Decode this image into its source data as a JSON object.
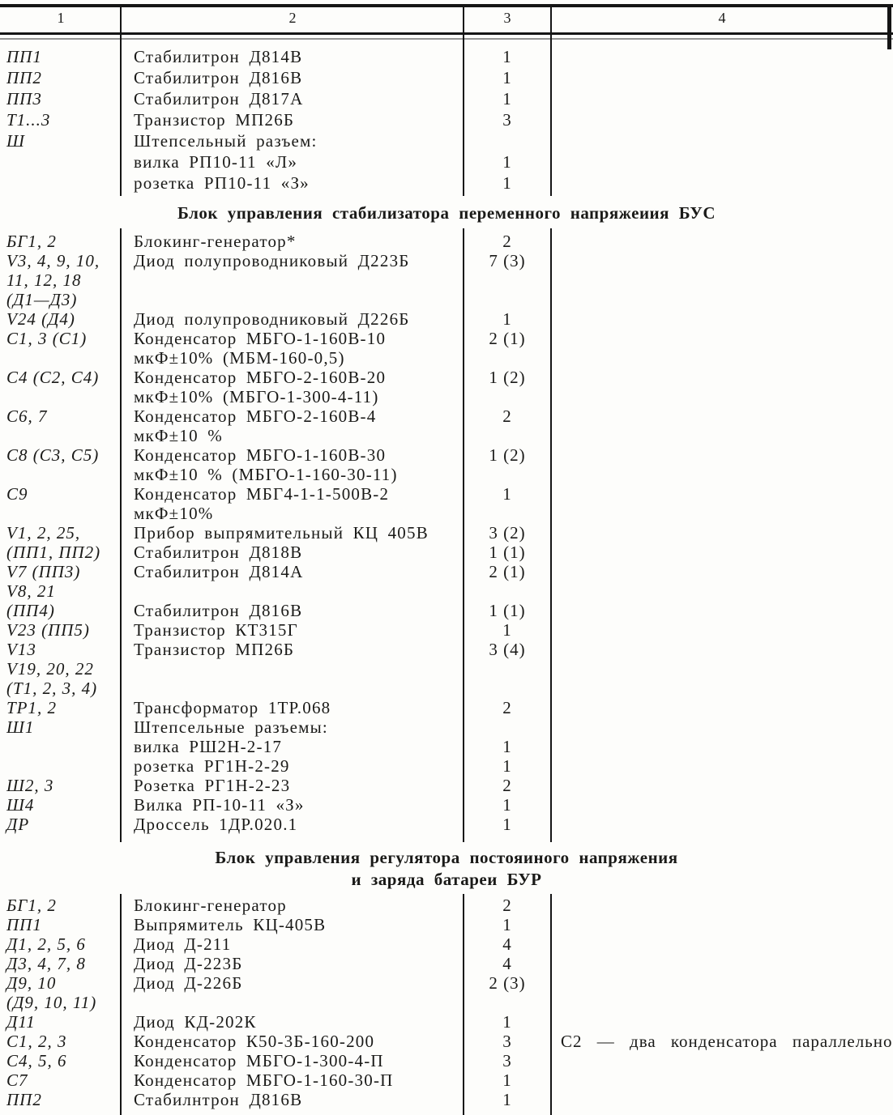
{
  "header": {
    "col1": "1",
    "col2": "2",
    "col3": "3",
    "col4": "4"
  },
  "section_top": {
    "rows": [
      {
        "c1": "ПП1",
        "c2": "Стабилитрон Д814В",
        "c3": "1",
        "c4": ""
      },
      {
        "c1": "ПП2",
        "c2": "Стабилитрон Д816В",
        "c3": "1",
        "c4": ""
      },
      {
        "c1": "ПП3",
        "c2": "Стабилитрон Д817А",
        "c3": "1",
        "c4": ""
      },
      {
        "c1": "Т1...3",
        "c2": "Транзистор МП26Б",
        "c3": "3",
        "c4": ""
      },
      {
        "c1": "Ш",
        "c2": "Штепсельный разъем:",
        "c3": "",
        "c4": ""
      },
      {
        "c1": "",
        "c2": "вилка РП10-11 «Л»",
        "c3": "1",
        "c4": ""
      },
      {
        "c1": "",
        "c2": "розетка РП10-11 «З»",
        "c3": "1",
        "c4": ""
      }
    ]
  },
  "section_bus": {
    "heading": "Блок управления стабилизатора переменного напряжеиия БУС",
    "rows": [
      {
        "c1": "БГ1, 2",
        "c2": "Блокинг-генератор*",
        "c3": "2",
        "c4": ""
      },
      {
        "c1": "V3, 4, 9, 10,",
        "c2": "Диод полупроводниковый Д223Б",
        "c3": "7 (3)",
        "c4": ""
      },
      {
        "c1": "11, 12, 18",
        "c2": "",
        "c3": "",
        "c4": ""
      },
      {
        "c1": "(Д1—Д3)",
        "c2": "",
        "c3": "",
        "c4": ""
      },
      {
        "c1": "V24 (Д4)",
        "c2": "Диод полупроводниковый Д226Б",
        "c3": "1",
        "c4": ""
      },
      {
        "c1": "С1, 3 (С1)",
        "c2": "Конденсатор МБГО-1-160В-10",
        "c3": "2 (1)",
        "c4": ""
      },
      {
        "c1": "",
        "c2": "мкФ±10% (МБМ-160-0,5)",
        "c3": "",
        "c4": ""
      },
      {
        "c1": "С4 (С2, С4)",
        "c2": "Конденсатор МБГО-2-160В-20",
        "c3": "1 (2)",
        "c4": ""
      },
      {
        "c1": "",
        "c2": "мкФ±10% (МБГО-1-300-4-11)",
        "c3": "",
        "c4": ""
      },
      {
        "c1": "С6, 7",
        "c2": "Конденсатор МБГО-2-160В-4",
        "c3": "2",
        "c4": ""
      },
      {
        "c1": "",
        "c2": "мкФ±10 %",
        "c3": "",
        "c4": ""
      },
      {
        "c1": "С8 (С3, С5)",
        "c2": "Конденсатор МБГО-1-160В-30",
        "c3": "1 (2)",
        "c4": ""
      },
      {
        "c1": "",
        "c2": "мкФ±10 % (МБГО-1-160-30-11)",
        "c3": "",
        "c4": ""
      },
      {
        "c1": "С9",
        "c2": "Конденсатор МБГ4-1-1-500В-2",
        "c3": "1",
        "c4": ""
      },
      {
        "c1": "",
        "c2": "мкФ±10%",
        "c3": "",
        "c4": ""
      },
      {
        "c1": "V1, 2, 25,",
        "c2": "Прибор выпрямительный КЦ 405В",
        "c3": "3 (2)",
        "c4": ""
      },
      {
        "c1": "(ПП1, ПП2)",
        "c2": "Стабилитрон Д818В",
        "c3": "1 (1)",
        "c4": ""
      },
      {
        "c1": "V7 (ПП3)",
        "c2": "Стабилитрон Д814А",
        "c3": "2 (1)",
        "c4": ""
      },
      {
        "c1": "V8, 21",
        "c2": "",
        "c3": "",
        "c4": ""
      },
      {
        "c1": "(ПП4)",
        "c2": "Стабилитрон Д816В",
        "c3": "1 (1)",
        "c4": ""
      },
      {
        "c1": "V23 (ПП5)",
        "c2": "Транзистор КТ315Г",
        "c3": "1",
        "c4": ""
      },
      {
        "c1": "V13",
        "c2": "Транзистор МП26Б",
        "c3": "3 (4)",
        "c4": ""
      },
      {
        "c1": "V19, 20, 22",
        "c2": "",
        "c3": "",
        "c4": ""
      },
      {
        "c1": "(Т1, 2, 3, 4)",
        "c2": "",
        "c3": "",
        "c4": ""
      },
      {
        "c1": "ТР1, 2",
        "c2": "Трансформатор 1ТР.068",
        "c3": "2",
        "c4": ""
      },
      {
        "c1": "Ш1",
        "c2": "Штепсельные разъемы:",
        "c3": "",
        "c4": ""
      },
      {
        "c1": "",
        "c2": "вилка РШ2Н-2-17",
        "c3": "1",
        "c4": ""
      },
      {
        "c1": "",
        "c2": "розетка РГ1Н-2-29",
        "c3": "1",
        "c4": ""
      },
      {
        "c1": "Ш2, 3",
        "c2": "Розетка РГ1Н-2-23",
        "c3": "2",
        "c4": ""
      },
      {
        "c1": "Ш4",
        "c2": "Вилка РП-10-11 «З»",
        "c3": "1",
        "c4": ""
      },
      {
        "c1": "ДР",
        "c2": "Дроссель 1ДР.020.1",
        "c3": "1",
        "c4": ""
      }
    ]
  },
  "section_bur": {
    "heading_line1": "Блок управления регулятора постояиного напряжения",
    "heading_line2": "и заряда батареи БУР",
    "rows": [
      {
        "c1": "БГ1, 2",
        "c2": "Блокинг-генератор",
        "c3": "2",
        "c4": ""
      },
      {
        "c1": "ПП1",
        "c2": "Выпрямитель КЦ-405В",
        "c3": "1",
        "c4": ""
      },
      {
        "c1": "Д1, 2, 5, 6",
        "c2": "Диод Д-211",
        "c3": "4",
        "c4": ""
      },
      {
        "c1": "Д3, 4, 7, 8",
        "c2": "Диод Д-223Б",
        "c3": "4",
        "c4": ""
      },
      {
        "c1": "Д9, 10",
        "c2": "Диод Д-226Б",
        "c3": "2 (3)",
        "c4": ""
      },
      {
        "c1": "(Д9, 10, 11)",
        "c2": "",
        "c3": "",
        "c4": ""
      },
      {
        "c1": "Д11",
        "c2": "Диод КД-202К",
        "c3": "1",
        "c4": ""
      },
      {
        "c1": "С1, 2, 3",
        "c2": "Конденсатор К50-3Б-160-200",
        "c3": "3",
        "c4": "С2 — два конденсатора параллельно"
      },
      {
        "c1": "С4, 5, 6",
        "c2": "Конденсатор МБГО-1-300-4-П",
        "c3": "3",
        "c4": ""
      },
      {
        "c1": "С7",
        "c2": "Конденсатор МБГО-1-160-30-П",
        "c3": "1",
        "c4": ""
      },
      {
        "c1": "ПП2",
        "c2": "Стабилнтрон Д816В",
        "c3": "1",
        "c4": ""
      }
    ]
  }
}
